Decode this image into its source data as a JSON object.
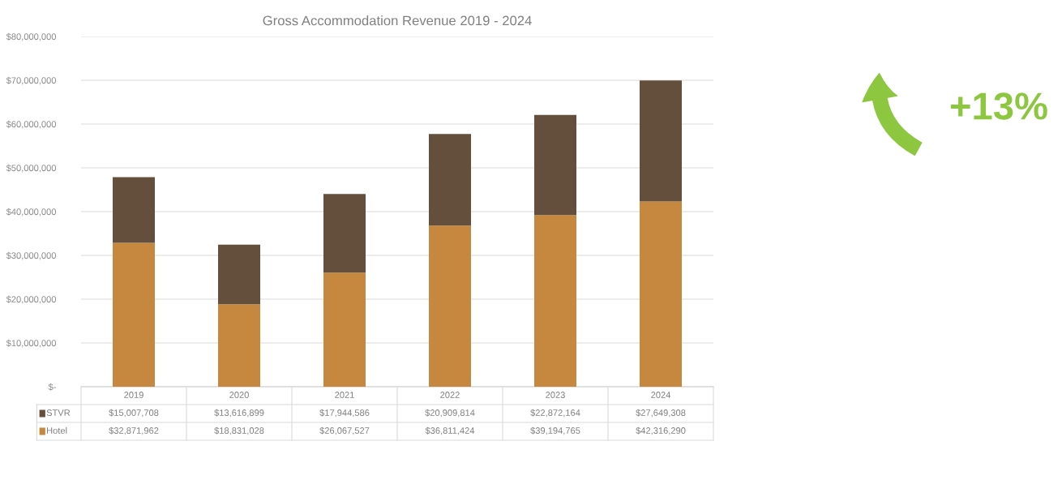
{
  "chart_data": {
    "type": "bar",
    "title": "Gross Accommodation Revenue 2019 - 2024",
    "stacked": true,
    "grid": "y",
    "legend": "bottom left",
    "categories": [
      "2019",
      "2020",
      "2021",
      "2022",
      "2023",
      "2024"
    ],
    "series": [
      {
        "name": "Hotel",
        "color": "#c5883e",
        "values": [
          32871962,
          18831028,
          26067527,
          36811424,
          39194765,
          42316290
        ],
        "value_labels": [
          "$32,871,962",
          "$18,831,028",
          "$26,067,527",
          "$36,811,424",
          "$39,194,765",
          "$42,316,290"
        ]
      },
      {
        "name": "STVR",
        "color": "#634f3b",
        "values": [
          15007708,
          13616899,
          17944586,
          20909814,
          22872164,
          27649308
        ],
        "value_labels": [
          "$15,007,708",
          "$13,616,899",
          "$17,944,586",
          "$20,909,814",
          "$22,872,164",
          "$27,649,308"
        ]
      }
    ],
    "ylim": [
      0,
      80000000
    ],
    "yticks": [
      {
        "value": 0,
        "label": "$-"
      },
      {
        "value": 10000000,
        "label": "$10,000,000"
      },
      {
        "value": 20000000,
        "label": "$20,000,000"
      },
      {
        "value": 30000000,
        "label": "$30,000,000"
      },
      {
        "value": 40000000,
        "label": "$40,000,000"
      },
      {
        "value": 50000000,
        "label": "$50,000,000"
      },
      {
        "value": 60000000,
        "label": "$60,000,000"
      },
      {
        "value": 70000000,
        "label": "$70,000,000"
      },
      {
        "value": 80000000,
        "label": "$80,000,000"
      }
    ],
    "annotations": [
      "+13%"
    ]
  }
}
